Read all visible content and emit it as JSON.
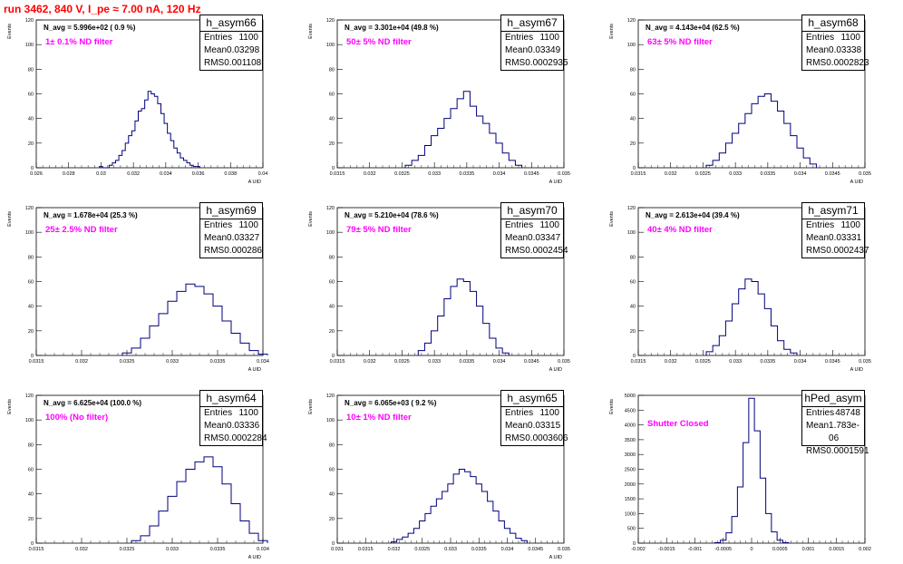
{
  "header": {
    "run_title": "run 3462,   840 V, I_pe ≈ 7.00 nA, 120 Hz"
  },
  "colors": {
    "title": "#ff0000",
    "filter_label": "#ff00ff",
    "histogram_line": "#00007f",
    "axes": "#000000"
  },
  "chart_data": [
    {
      "type": "histogram",
      "stats": {
        "title": "h_asym66",
        "entries": "1100",
        "mean": "0.03298",
        "rms": "0.001108"
      },
      "n_avg": "N_avg = 5.996e+02 ( 0.9 %)",
      "filter": "1± 0.1% ND filter",
      "ylabel": "Events",
      "xlabel": "A UID",
      "xlim": [
        0.026,
        0.04
      ],
      "ylim": [
        0,
        120
      ],
      "xticks": [
        "0.026",
        "0.028",
        "0.03",
        "0.032",
        "0.034",
        "0.036",
        "0.038",
        "0.04"
      ],
      "yticks": [
        "0",
        "20",
        "40",
        "60",
        "80",
        "100",
        "120"
      ],
      "bins": [
        0.03,
        0.0302,
        0.0304,
        0.0306,
        0.0308,
        0.031,
        0.0312,
        0.0314,
        0.0316,
        0.0318,
        0.032,
        0.0322,
        0.0324,
        0.0326,
        0.0328,
        0.033,
        0.0332,
        0.0334,
        0.0336,
        0.0338,
        0.034,
        0.0342,
        0.0344,
        0.0346,
        0.0348,
        0.035,
        0.0352,
        0.0354,
        0.0356,
        0.0358,
        0.036
      ],
      "counts": [
        1,
        0,
        0,
        2,
        4,
        6,
        10,
        14,
        20,
        26,
        30,
        38,
        46,
        48,
        55,
        62,
        60,
        58,
        52,
        44,
        36,
        28,
        22,
        16,
        12,
        8,
        6,
        4,
        2,
        1,
        1
      ]
    },
    {
      "type": "histogram",
      "stats": {
        "title": "h_asym67",
        "entries": "1100",
        "mean": "0.03349",
        "rms": "0.0002935"
      },
      "n_avg": "N_avg = 3.301e+04 (49.8 %)",
      "filter": "50± 5% ND filter",
      "ylabel": "Events",
      "xlabel": "A UID",
      "xlim": [
        0.0315,
        0.035
      ],
      "ylim": [
        0,
        120
      ],
      "xticks": [
        "0.0315",
        "0.032",
        "0.0325",
        "0.033",
        "0.0335",
        "0.034",
        "0.0345",
        "0.035"
      ],
      "yticks": [
        "0",
        "20",
        "40",
        "60",
        "80",
        "100",
        "120"
      ],
      "bins": [
        0.0326,
        0.0327,
        0.0328,
        0.0329,
        0.033,
        0.0331,
        0.0332,
        0.0333,
        0.0334,
        0.0335,
        0.0336,
        0.0337,
        0.0338,
        0.0339,
        0.034,
        0.0341,
        0.0342,
        0.0343
      ],
      "counts": [
        2,
        6,
        10,
        18,
        26,
        32,
        40,
        48,
        56,
        62,
        50,
        42,
        36,
        28,
        20,
        12,
        6,
        2
      ]
    },
    {
      "type": "histogram",
      "stats": {
        "title": "h_asym68",
        "entries": "1100",
        "mean": "0.03338",
        "rms": "0.0002823"
      },
      "n_avg": "N_avg = 4.143e+04 (62.5 %)",
      "filter": "63± 5% ND filter",
      "ylabel": "Events",
      "xlabel": "A UID",
      "xlim": [
        0.0315,
        0.035
      ],
      "ylim": [
        0,
        120
      ],
      "xticks": [
        "0.0315",
        "0.032",
        "0.0325",
        "0.033",
        "0.0335",
        "0.034",
        "0.0345",
        "0.035"
      ],
      "yticks": [
        "0",
        "20",
        "40",
        "60",
        "80",
        "100",
        "120"
      ],
      "bins": [
        0.0326,
        0.0327,
        0.0328,
        0.0329,
        0.033,
        0.0331,
        0.0332,
        0.0333,
        0.0334,
        0.0335,
        0.0336,
        0.0337,
        0.0338,
        0.0339,
        0.034,
        0.0341,
        0.0342
      ],
      "counts": [
        2,
        6,
        12,
        20,
        28,
        36,
        44,
        52,
        58,
        60,
        54,
        46,
        36,
        26,
        16,
        8,
        3
      ]
    },
    {
      "type": "histogram",
      "stats": {
        "title": "h_asym69",
        "entries": "1100",
        "mean": "0.03327",
        "rms": "0.000286"
      },
      "n_avg": "N_avg = 1.678e+04 (25.3 %)",
      "filter": "25± 2.5% ND filter",
      "ylabel": "Events",
      "xlabel": "A UID",
      "xlim": [
        0.0315,
        0.034
      ],
      "ylim": [
        0,
        120
      ],
      "xticks": [
        "0.0315",
        "0.032",
        "0.0325",
        "0.033",
        "0.0335",
        "0.034"
      ],
      "yticks": [
        "0",
        "20",
        "40",
        "60",
        "80",
        "100",
        "120"
      ],
      "bins": [
        0.0325,
        0.0326,
        0.0327,
        0.0328,
        0.0329,
        0.033,
        0.0331,
        0.0332,
        0.0333,
        0.0334,
        0.0335,
        0.0336,
        0.0337,
        0.0338,
        0.0339,
        0.034
      ],
      "counts": [
        2,
        6,
        14,
        24,
        34,
        44,
        52,
        58,
        56,
        50,
        40,
        28,
        18,
        10,
        4,
        1
      ]
    },
    {
      "type": "histogram",
      "stats": {
        "title": "h_asym70",
        "entries": "1100",
        "mean": "0.03347",
        "rms": "0.0002454"
      },
      "n_avg": "N_avg = 5.210e+04 (78.6 %)",
      "filter": "79± 5% ND filter",
      "ylabel": "Events",
      "xlabel": "A UID",
      "xlim": [
        0.0315,
        0.035
      ],
      "ylim": [
        0,
        120
      ],
      "xticks": [
        "0.0315",
        "0.032",
        "0.0325",
        "0.033",
        "0.0335",
        "0.034",
        "0.0345",
        "0.035"
      ],
      "yticks": [
        "0",
        "20",
        "40",
        "60",
        "80",
        "100",
        "120"
      ],
      "bins": [
        0.0328,
        0.0329,
        0.033,
        0.0331,
        0.0332,
        0.0333,
        0.0334,
        0.0335,
        0.0336,
        0.0337,
        0.0338,
        0.0339,
        0.034,
        0.0341
      ],
      "counts": [
        4,
        10,
        20,
        32,
        46,
        56,
        62,
        60,
        52,
        40,
        26,
        14,
        6,
        2
      ]
    },
    {
      "type": "histogram",
      "stats": {
        "title": "h_asym71",
        "entries": "1100",
        "mean": "0.03331",
        "rms": "0.0002437"
      },
      "n_avg": "N_avg = 2.613e+04 (39.4 %)",
      "filter": "40± 4% ND filter",
      "ylabel": "Events",
      "xlabel": "A UID",
      "xlim": [
        0.0315,
        0.035
      ],
      "ylim": [
        0,
        120
      ],
      "xticks": [
        "0.0315",
        "0.032",
        "0.0325",
        "0.033",
        "0.0335",
        "0.034",
        "0.0345",
        "0.035"
      ],
      "yticks": [
        "0",
        "20",
        "40",
        "60",
        "80",
        "100",
        "120"
      ],
      "bins": [
        0.0326,
        0.0327,
        0.0328,
        0.0329,
        0.033,
        0.0331,
        0.0332,
        0.0333,
        0.0334,
        0.0335,
        0.0336,
        0.0337,
        0.0338,
        0.0339
      ],
      "counts": [
        3,
        8,
        16,
        28,
        42,
        54,
        62,
        60,
        50,
        38,
        24,
        12,
        5,
        2
      ]
    },
    {
      "type": "histogram",
      "stats": {
        "title": "h_asym64",
        "entries": "1100",
        "mean": "0.03336",
        "rms": "0.0002284"
      },
      "n_avg": "N_avg = 6.625e+04 (100.0 %)",
      "filter": "100% (No filter)",
      "ylabel": "Events",
      "xlabel": "A UID",
      "xlim": [
        0.0315,
        0.034
      ],
      "ylim": [
        0,
        120
      ],
      "xticks": [
        "0.0315",
        "0.032",
        "0.0325",
        "0.033",
        "0.0335",
        "0.034"
      ],
      "yticks": [
        "0",
        "20",
        "40",
        "60",
        "80",
        "100",
        "120"
      ],
      "bins": [
        0.0326,
        0.0327,
        0.0328,
        0.0329,
        0.033,
        0.0331,
        0.0332,
        0.0333,
        0.0334,
        0.0335,
        0.0336,
        0.0337,
        0.0338,
        0.0339,
        0.034
      ],
      "counts": [
        2,
        6,
        14,
        26,
        38,
        50,
        60,
        66,
        70,
        62,
        48,
        32,
        18,
        8,
        2
      ]
    },
    {
      "type": "histogram",
      "stats": {
        "title": "h_asym65",
        "entries": "1100",
        "mean": "0.03315",
        "rms": "0.0003606"
      },
      "n_avg": "N_avg = 6.065e+03 ( 9.2 %)",
      "filter": "10± 1% ND filter",
      "ylabel": "Events",
      "xlabel": "A UID",
      "xlim": [
        0.031,
        0.035
      ],
      "ylim": [
        0,
        120
      ],
      "xticks": [
        "0.031",
        "0.0315",
        "0.032",
        "0.0325",
        "0.033",
        "0.0335",
        "0.034",
        "0.0345",
        "0.035"
      ],
      "yticks": [
        "0",
        "20",
        "40",
        "60",
        "80",
        "100",
        "120"
      ],
      "bins": [
        0.032,
        0.0321,
        0.0322,
        0.0323,
        0.0324,
        0.0325,
        0.0326,
        0.0327,
        0.0328,
        0.0329,
        0.033,
        0.0331,
        0.0332,
        0.0333,
        0.0334,
        0.0335,
        0.0336,
        0.0337,
        0.0338,
        0.0339,
        0.034,
        0.0341,
        0.0342,
        0.0343
      ],
      "counts": [
        1,
        3,
        5,
        8,
        12,
        18,
        24,
        30,
        36,
        42,
        48,
        56,
        60,
        58,
        54,
        48,
        42,
        34,
        26,
        18,
        12,
        8,
        4,
        2
      ]
    },
    {
      "type": "histogram",
      "stats": {
        "title": "hPed_asym",
        "entries": "48748",
        "mean": "1.783e-06",
        "rms": "0.0001591"
      },
      "n_avg": "",
      "filter": "Shutter Closed",
      "ylabel": "Events",
      "xlabel": "",
      "xlim": [
        -0.002,
        0.002
      ],
      "ylim": [
        0,
        5000
      ],
      "xticks": [
        "-0.002",
        "-0.0015",
        "-0.001",
        "-0.0005",
        "0",
        "0.0005",
        "0.001",
        "0.0015",
        "0.002"
      ],
      "yticks": [
        "0",
        "500",
        "1000",
        "1500",
        "2000",
        "2500",
        "3000",
        "3500",
        "4000",
        "4500",
        "5000"
      ],
      "bins": [
        -0.0006,
        -0.0005,
        -0.0004,
        -0.0003,
        -0.0002,
        -0.0001,
        0,
        0.0001,
        0.0002,
        0.0003,
        0.0004,
        0.0005,
        0.0006
      ],
      "counts": [
        20,
        100,
        350,
        900,
        1900,
        3400,
        4900,
        3800,
        2200,
        1000,
        380,
        100,
        20
      ]
    }
  ]
}
